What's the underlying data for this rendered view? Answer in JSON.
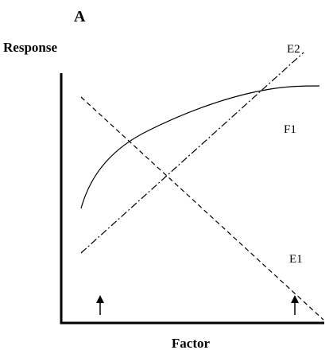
{
  "panel_label": "A",
  "y_axis_label": "Response",
  "x_axis_label": "Factor",
  "curves": [
    {
      "label": "E2"
    },
    {
      "label": "F1"
    },
    {
      "label": "E1"
    }
  ]
}
